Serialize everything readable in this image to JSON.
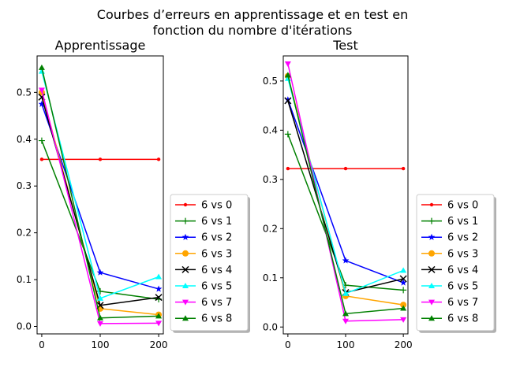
{
  "figure": {
    "suptitle_line1": "Courbes d’erreurs en apprentissage et en test en",
    "suptitle_line2": "fonction du nombre d'itérations"
  },
  "chart_data": [
    {
      "type": "line",
      "title": "Apprentissage",
      "xlabel": "",
      "ylabel": "",
      "x": [
        0,
        100,
        200
      ],
      "xticks": [
        0,
        100,
        200
      ],
      "yticks": [
        0.0,
        0.1,
        0.2,
        0.3,
        0.4,
        0.5
      ],
      "xlim": [
        -8,
        208
      ],
      "ylim": [
        -0.016,
        0.578
      ],
      "grid": false,
      "legend_position": "right, outside axes, bottom",
      "series": [
        {
          "name": "6 vs 0",
          "color": "#ff0000",
          "marker": "point",
          "values": [
            0.357,
            0.357,
            0.357
          ]
        },
        {
          "name": "6 vs 1",
          "color": "#008000",
          "marker": "plus",
          "values": [
            0.397,
            0.075,
            0.058
          ]
        },
        {
          "name": "6 vs 2",
          "color": "#0000ff",
          "marker": "star",
          "values": [
            0.475,
            0.115,
            0.08
          ]
        },
        {
          "name": "6 vs 3",
          "color": "#ffa500",
          "marker": "circle",
          "values": [
            0.5,
            0.038,
            0.025
          ]
        },
        {
          "name": "6 vs 4",
          "color": "#000000",
          "marker": "x",
          "values": [
            0.49,
            0.045,
            0.062
          ]
        },
        {
          "name": "6 vs 5",
          "color": "#00ffff",
          "marker": "triangle-up",
          "values": [
            0.545,
            0.06,
            0.106
          ]
        },
        {
          "name": "6 vs 7",
          "color": "#ff00ff",
          "marker": "triangle-down",
          "values": [
            0.505,
            0.006,
            0.007
          ]
        },
        {
          "name": "6 vs 8",
          "color": "#008000",
          "marker": "triangle-up",
          "values": [
            0.553,
            0.018,
            0.022
          ]
        }
      ]
    },
    {
      "type": "line",
      "title": "Test",
      "xlabel": "",
      "ylabel": "",
      "x": [
        0,
        100,
        200
      ],
      "xticks": [
        0,
        100,
        200
      ],
      "yticks": [
        0.0,
        0.1,
        0.2,
        0.3,
        0.4,
        0.5
      ],
      "xlim": [
        -8,
        208
      ],
      "ylim": [
        -0.014,
        0.551
      ],
      "grid": false,
      "legend_position": "right, outside axes, bottom",
      "series": [
        {
          "name": "6 vs 0",
          "color": "#ff0000",
          "marker": "point",
          "values": [
            0.322,
            0.322,
            0.322
          ]
        },
        {
          "name": "6 vs 1",
          "color": "#008000",
          "marker": "plus",
          "values": [
            0.392,
            0.085,
            0.075
          ]
        },
        {
          "name": "6 vs 2",
          "color": "#0000ff",
          "marker": "star",
          "values": [
            0.462,
            0.135,
            0.09
          ]
        },
        {
          "name": "6 vs 3",
          "color": "#ffa500",
          "marker": "circle",
          "values": [
            0.51,
            0.063,
            0.045
          ]
        },
        {
          "name": "6 vs 4",
          "color": "#000000",
          "marker": "x",
          "values": [
            0.46,
            0.07,
            0.098
          ]
        },
        {
          "name": "6 vs 5",
          "color": "#00ffff",
          "marker": "triangle-up",
          "values": [
            0.505,
            0.068,
            0.115
          ]
        },
        {
          "name": "6 vs 7",
          "color": "#ff00ff",
          "marker": "triangle-down",
          "values": [
            0.535,
            0.012,
            0.015
          ]
        },
        {
          "name": "6 vs 8",
          "color": "#008000",
          "marker": "triangle-up",
          "values": [
            0.512,
            0.027,
            0.038
          ]
        }
      ]
    }
  ]
}
